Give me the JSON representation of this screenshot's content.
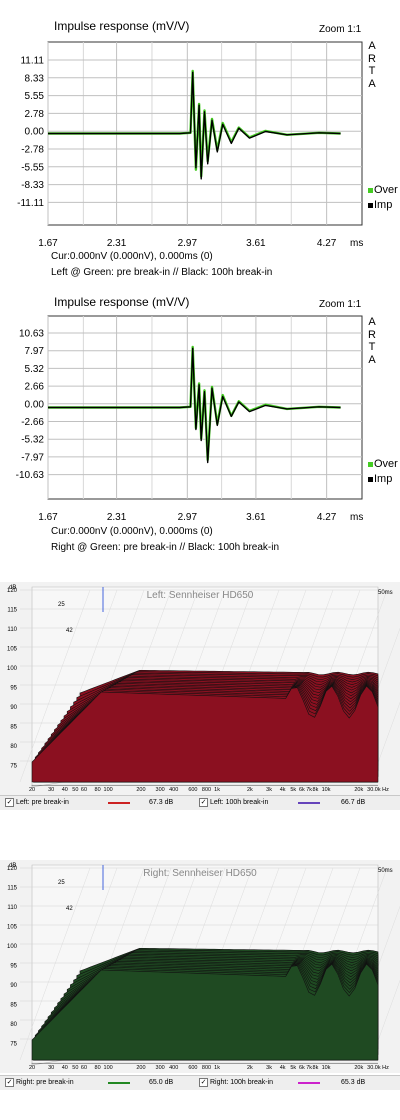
{
  "charts": [
    {
      "title": "Impulse response (mV/V)",
      "zoom": "Zoom 1:1",
      "logo": [
        "A",
        "R",
        "T",
        "A"
      ],
      "yticks": [
        "11.11",
        "8.33",
        "5.55",
        "2.78",
        "0.00",
        "-2.78",
        "-5.55",
        "-8.33",
        "-11.11"
      ],
      "xticks": [
        "1.67",
        "2.31",
        "2.97",
        "3.61",
        "4.27"
      ],
      "xunit": "ms",
      "legend": [
        {
          "label": "Over",
          "color": "#44cc22"
        },
        {
          "label": "Imp",
          "color": "#000000"
        }
      ],
      "cursor": "Cur:0.000nV (0.000nV), 0.000ms (0)",
      "caption": "Left @ Green: pre break-in // Black: 100h break-in"
    },
    {
      "title": "Impulse response (mV/V)",
      "zoom": "Zoom 1:1",
      "logo": [
        "A",
        "R",
        "T",
        "A"
      ],
      "yticks": [
        "10.63",
        "7.97",
        "5.32",
        "2.66",
        "0.00",
        "-2.66",
        "-5.32",
        "-7.97",
        "-10.63"
      ],
      "xticks": [
        "1.67",
        "2.31",
        "2.97",
        "3.61",
        "4.27"
      ],
      "xunit": "ms",
      "legend": [
        {
          "label": "Over",
          "color": "#44cc22"
        },
        {
          "label": "Imp",
          "color": "#000000"
        }
      ],
      "cursor": "Cur:0.000nV (0.000nV), 0.000ms (0)",
      "caption": "Right @ Green: pre break-in // Black: 100h break-in"
    }
  ],
  "waterfalls": [
    {
      "title": "Left: Sennheiser HD650",
      "time_label": "50ms",
      "ylabel": "dB",
      "yticks": [
        "120",
        "115",
        "110",
        "105",
        "100",
        "95",
        "90",
        "85",
        "80",
        "75"
      ],
      "depth_ticks": [
        "25",
        "42"
      ],
      "xticks": [
        "20",
        "30",
        "40",
        "50",
        "60",
        "80",
        "100",
        "200",
        "300",
        "400",
        "600",
        "800",
        "1k",
        "2k",
        "3k",
        "4k",
        "5k",
        "6k",
        "7k",
        "8k",
        "10k",
        "20k",
        "30.0k Hz"
      ],
      "fill": "#8b1020",
      "legend": [
        {
          "label": "Left: pre break-in",
          "value": "67.3 dB",
          "color": "#cc2222",
          "checked": true
        },
        {
          "label": "Left: 100h break-in",
          "value": "66.7 dB",
          "color": "#6644bb",
          "checked": true
        }
      ]
    },
    {
      "title": "Right: Sennheiser HD650",
      "time_label": "50ms",
      "ylabel": "dB",
      "yticks": [
        "120",
        "115",
        "110",
        "105",
        "100",
        "95",
        "90",
        "85",
        "80",
        "75"
      ],
      "depth_ticks": [
        "25",
        "42"
      ],
      "xticks": [
        "20",
        "30",
        "40",
        "50",
        "60",
        "80",
        "100",
        "200",
        "300",
        "400",
        "600",
        "800",
        "1k",
        "2k",
        "3k",
        "4k",
        "5k",
        "6k",
        "7k",
        "8k",
        "10k",
        "20k",
        "30.0k Hz"
      ],
      "fill": "#1f4a22",
      "legend": [
        {
          "label": "Right: pre break-in",
          "value": "65.0 dB",
          "color": "#228822",
          "checked": true
        },
        {
          "label": "Right: 100h break-in",
          "value": "65.3 dB",
          "color": "#cc22cc",
          "checked": true
        }
      ]
    }
  ],
  "chart_data": [
    {
      "type": "line",
      "title": "Impulse response (mV/V)",
      "xlabel": "ms",
      "xlim": [
        1.67,
        4.6
      ],
      "ylim": [
        -13.9,
        13.9
      ],
      "grid": true,
      "legend_position": "right",
      "series": [
        {
          "name": "Over",
          "x": [
            1.67,
            2.9,
            3.0,
            3.02,
            3.05,
            3.08,
            3.1,
            3.13,
            3.16,
            3.2,
            3.25,
            3.3,
            3.38,
            3.45,
            3.55,
            3.7,
            3.9,
            4.2,
            4.4
          ],
          "values": [
            0,
            0,
            0.1,
            9.5,
            -5.5,
            4.5,
            -6.5,
            3.5,
            -4.2,
            2.2,
            -2.5,
            1.6,
            -1.3,
            0.9,
            -0.6,
            0.4,
            -0.2,
            0.1,
            0
          ]
        },
        {
          "name": "Imp",
          "x": [
            1.67,
            2.9,
            3.0,
            3.02,
            3.05,
            3.08,
            3.1,
            3.13,
            3.16,
            3.2,
            3.25,
            3.3,
            3.38,
            3.45,
            3.55,
            3.7,
            3.9,
            4.2,
            4.4
          ],
          "values": [
            0,
            0,
            0.1,
            9.3,
            -5.2,
            4.3,
            -6.9,
            3.3,
            -4.6,
            2.0,
            -2.8,
            1.4,
            -1.5,
            0.8,
            -0.7,
            0.3,
            -0.2,
            0.1,
            0
          ]
        }
      ]
    },
    {
      "type": "line",
      "title": "Impulse response (mV/V)",
      "xlabel": "ms",
      "xlim": [
        1.67,
        4.6
      ],
      "ylim": [
        -13.3,
        13.3
      ],
      "grid": true,
      "legend_position": "right",
      "series": [
        {
          "name": "Over",
          "x": [
            1.67,
            2.9,
            3.0,
            3.02,
            3.05,
            3.08,
            3.1,
            3.13,
            3.16,
            3.2,
            3.25,
            3.3,
            3.38,
            3.45,
            3.55,
            3.7,
            3.9,
            4.2,
            4.4
          ],
          "values": [
            0,
            0,
            0.1,
            8.8,
            -3.0,
            3.5,
            -4.5,
            2.5,
            -7.6,
            3.0,
            -2.4,
            1.8,
            -1.2,
            0.9,
            -0.5,
            0.4,
            -0.2,
            0.1,
            0
          ]
        },
        {
          "name": "Imp",
          "x": [
            1.67,
            2.9,
            3.0,
            3.02,
            3.05,
            3.08,
            3.1,
            3.13,
            3.16,
            3.2,
            3.25,
            3.3,
            3.38,
            3.45,
            3.55,
            3.7,
            3.9,
            4.2,
            4.4
          ],
          "values": [
            0,
            0,
            0.1,
            8.6,
            -3.2,
            3.3,
            -4.8,
            2.3,
            -8.0,
            2.8,
            -2.6,
            1.6,
            -1.3,
            0.8,
            -0.6,
            0.3,
            -0.2,
            0.1,
            0
          ]
        }
      ]
    }
  ]
}
